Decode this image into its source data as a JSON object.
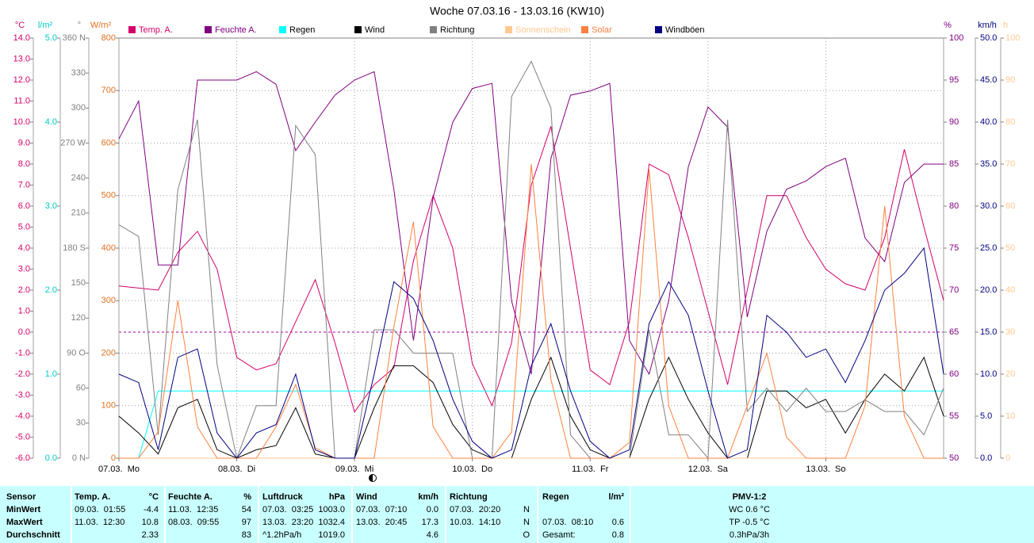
{
  "chart_data": {
    "type": "line",
    "title": "Woche 07.03.16 - 13.03.16 (KW10)",
    "xlim": [
      0,
      168
    ],
    "xticks": [
      {
        "value": 0,
        "label": "07.03.  Mo"
      },
      {
        "value": 24,
        "label": "08.03.  Di"
      },
      {
        "value": 48,
        "label": "09.03.  Mi"
      },
      {
        "value": 72,
        "label": "10.03.  Do"
      },
      {
        "value": 96,
        "label": "11.03.  Fr"
      },
      {
        "value": 120,
        "label": "12.03.  Sa"
      },
      {
        "value": 144,
        "label": "13.03.  So"
      }
    ],
    "x": [
      0,
      4,
      8,
      12,
      16,
      20,
      24,
      28,
      32,
      36,
      40,
      44,
      48,
      52,
      56,
      60,
      64,
      68,
      72,
      76,
      80,
      84,
      88,
      92,
      96,
      100,
      104,
      108,
      112,
      116,
      120,
      124,
      128,
      132,
      136,
      140,
      144,
      148,
      152,
      156,
      160,
      164,
      168
    ],
    "axes": {
      "temp": {
        "label": "°C",
        "color": "#d4006a",
        "lim": [
          -6,
          14
        ],
        "zero_line": true,
        "ticks": [
          {
            "value": -6,
            "label": "-6.0"
          },
          {
            "value": -5,
            "label": "-5.0"
          },
          {
            "value": -4,
            "label": "-4.0"
          },
          {
            "value": -3,
            "label": "-3.0"
          },
          {
            "value": -2,
            "label": "-2.0"
          },
          {
            "value": -1,
            "label": "-1.0"
          },
          {
            "value": 0,
            "label": "0.0"
          },
          {
            "value": 1,
            "label": "1.0"
          },
          {
            "value": 2,
            "label": "2.0"
          },
          {
            "value": 3,
            "label": "3.0"
          },
          {
            "value": 4,
            "label": "4.0"
          },
          {
            "value": 5,
            "label": "5.0"
          },
          {
            "value": 6,
            "label": "6.0"
          },
          {
            "value": 7,
            "label": "7.0"
          },
          {
            "value": 8,
            "label": "8.0"
          },
          {
            "value": 9,
            "label": "9.0"
          },
          {
            "value": 10,
            "label": "10.0"
          },
          {
            "value": 11,
            "label": "11.0"
          },
          {
            "value": 12,
            "label": "12.0"
          },
          {
            "value": 13,
            "label": "13.0"
          },
          {
            "value": 14,
            "label": "14.0"
          }
        ]
      },
      "rain": {
        "label": "l/m²",
        "color": "#00c8c8",
        "lim": [
          0,
          5
        ],
        "ticks": [
          {
            "value": 0,
            "label": "0.0"
          },
          {
            "value": 1,
            "label": "1.0"
          },
          {
            "value": 2,
            "label": "2.0"
          },
          {
            "value": 3,
            "label": "3.0"
          },
          {
            "value": 4,
            "label": "4.0"
          },
          {
            "value": 5,
            "label": "5.0"
          }
        ]
      },
      "dir": {
        "label": "°",
        "color": "#808080",
        "lim": [
          0,
          360
        ],
        "ticks": [
          {
            "value": 0,
            "label": "0 N"
          },
          30,
          60,
          {
            "value": 90,
            "label": "90 O"
          },
          120,
          150,
          {
            "value": 180,
            "label": "180 S"
          },
          210,
          240,
          {
            "value": 270,
            "label": "270 W"
          },
          300,
          330,
          {
            "value": 360,
            "label": "360 N"
          }
        ]
      },
      "solar": {
        "label": "W/m²",
        "color": "#e07020",
        "lim": [
          0,
          800
        ],
        "grid": true,
        "ticks": [
          0,
          100,
          200,
          300,
          400,
          500,
          600,
          700,
          800
        ]
      },
      "hum": {
        "label": "%",
        "color": "#800080",
        "lim": [
          50,
          100
        ],
        "ticks": [
          50,
          55,
          60,
          65,
          70,
          75,
          80,
          85,
          90,
          95,
          100
        ]
      },
      "wind": {
        "label": "km/h",
        "color": "#000080",
        "lim": [
          0,
          50
        ],
        "ticks": [
          {
            "value": 0,
            "label": "0.0"
          },
          {
            "value": 5,
            "label": "5.0"
          },
          {
            "value": 10,
            "label": "10.0"
          },
          {
            "value": 15,
            "label": "15.0"
          },
          {
            "value": 20,
            "label": "20.0"
          },
          {
            "value": 25,
            "label": "25.0"
          },
          {
            "value": 30,
            "label": "30.0"
          },
          {
            "value": 35,
            "label": "35.0"
          },
          {
            "value": 40,
            "label": "40.0"
          },
          {
            "value": 45,
            "label": "45.0"
          },
          {
            "value": 50,
            "label": "50.0"
          }
        ]
      },
      "sun": {
        "label": "h",
        "color": "#ffc890",
        "lim": [
          0,
          100
        ],
        "ticks": [
          0,
          10,
          20,
          30,
          40,
          50,
          60,
          70,
          80,
          90,
          100
        ]
      }
    },
    "series": [
      {
        "name": "Temp. A.",
        "color": "#d4006a",
        "axis": "temp",
        "values": [
          2.2,
          2.1,
          2.0,
          3.8,
          4.8,
          3.0,
          -1.2,
          -1.8,
          -1.5,
          0.5,
          2.5,
          -0.5,
          -3.8,
          -2.5,
          -1.7,
          3.4,
          6.5,
          4.0,
          -1.5,
          -3.5,
          -0.5,
          7.0,
          9.8,
          4.0,
          -1.8,
          -2.5,
          0.5,
          8.0,
          7.5,
          4.5,
          1.0,
          -2.5,
          2.0,
          6.5,
          6.5,
          4.5,
          3.0,
          2.3,
          2.0,
          4.5,
          8.7,
          5.0,
          1.5
        ]
      },
      {
        "name": "Feuchte A.",
        "color": "#800080",
        "axis": "hum",
        "values": [
          88,
          92.5,
          73,
          73,
          95,
          95,
          95,
          96,
          94.5,
          86.6,
          90,
          93.2,
          95,
          96,
          82,
          64,
          81,
          90,
          94,
          94.6,
          68.7,
          60,
          85.7,
          93.2,
          93.7,
          94.6,
          64,
          60,
          68.7,
          84.7,
          91.8,
          89.4,
          66.8,
          77,
          82,
          83,
          84.7,
          85.7,
          76.2,
          73.4,
          82.8,
          85,
          85
        ]
      },
      {
        "name": "Regen",
        "color": "#00ffff",
        "axis": "rain",
        "values": [
          0,
          0,
          0.8,
          0.8,
          0.8,
          0.8,
          0.8,
          0.8,
          0.8,
          0.8,
          0.8,
          0.8,
          0.8,
          0.8,
          0.8,
          0.8,
          0.8,
          0.8,
          0.8,
          0.8,
          0.8,
          0.8,
          0.8,
          0.8,
          0.8,
          0.8,
          0.8,
          0.8,
          0.8,
          0.8,
          0.8,
          0.8,
          0.8,
          0.8,
          0.8,
          0.8,
          0.8,
          0.8,
          0.8,
          0.8,
          0.8,
          0.8,
          0.8
        ]
      },
      {
        "name": "Wind",
        "color": "#000000",
        "axis": "wind",
        "values": [
          5,
          3,
          0.5,
          6,
          7,
          1,
          0,
          1,
          1.5,
          6,
          0.5,
          0,
          0,
          6,
          11,
          11,
          9,
          4,
          1,
          0,
          0,
          7,
          12,
          5,
          1,
          0,
          0,
          7,
          12,
          7,
          3,
          0,
          0,
          8,
          8,
          6,
          7,
          3,
          7,
          10,
          8,
          12,
          5
        ]
      },
      {
        "name": "Richtung",
        "color": "#808080",
        "axis": "dir",
        "values": [
          200,
          190,
          20,
          230,
          290,
          80,
          0,
          45,
          45,
          285,
          260,
          0,
          0,
          110,
          110,
          90,
          90,
          90,
          0,
          0,
          310,
          340,
          300,
          20,
          0,
          0,
          0,
          110,
          20,
          20,
          0,
          290,
          40,
          60,
          40,
          60,
          40,
          40,
          50,
          40,
          40,
          20,
          60
        ]
      },
      {
        "name": "Sonnenschein",
        "color": "#ffc890",
        "axis": "sun",
        "values": [
          0,
          0,
          0,
          0,
          0,
          0,
          0,
          0,
          0,
          0,
          0,
          0,
          0,
          0,
          0,
          0,
          0,
          0,
          0,
          0,
          0,
          0,
          0,
          0,
          0,
          0,
          0,
          0,
          0,
          0,
          0,
          0,
          0,
          0,
          0,
          0,
          0,
          0,
          0,
          0,
          0,
          0,
          0
        ]
      },
      {
        "name": "Solar",
        "color": "#ff8040",
        "axis": "solar",
        "values": [
          0,
          0,
          50,
          300,
          60,
          0,
          0,
          0,
          60,
          140,
          20,
          0,
          0,
          0,
          250,
          450,
          60,
          0,
          0,
          0,
          50,
          560,
          150,
          0,
          0,
          0,
          30,
          550,
          100,
          0,
          0,
          0,
          100,
          200,
          40,
          0,
          0,
          0,
          100,
          480,
          80,
          0,
          0
        ]
      },
      {
        "name": "Windböen",
        "color": "#000080",
        "axis": "wind",
        "values": [
          10,
          9,
          1,
          12,
          13,
          3,
          0,
          3,
          4,
          10,
          1,
          0,
          0,
          10,
          21,
          19,
          14,
          7,
          2,
          0,
          1,
          11,
          16,
          8,
          2,
          0,
          1,
          16,
          21,
          17,
          8,
          0,
          1,
          17,
          15,
          12,
          13,
          9,
          14,
          20,
          22,
          25,
          10
        ]
      }
    ]
  },
  "table": {
    "header": {
      "label": "Sensor",
      "temp_time": "Temp. A.",
      "temp": "°C",
      "hum_time": "Feuchte A.",
      "hum": "%",
      "press_time": "Luftdruck",
      "press": "hPa",
      "wind_time": "Wind",
      "wind": "km/h",
      "dir_time": "Richtung",
      "rain_time": "Regen",
      "rain": "l/m²",
      "pmv": "PMV-1:2"
    },
    "rows": [
      {
        "label": "MinWert",
        "temp_time": "09.03.  01:55",
        "temp": "-4.4",
        "hum_time": "11.03.  12:35",
        "hum": "54",
        "press_time": "07.03.  03:25",
        "press": "1003.0",
        "wind_time": "07.03.  07:10",
        "wind": "0.0",
        "dir_time": "07.03.  20:20",
        "dir": "N",
        "pmv": "WC 0.6 °C"
      },
      {
        "label": "MaxWert",
        "temp_time": "11.03.  12:30",
        "temp": "10.8",
        "hum_time": "08.03.  09:55",
        "hum": "97",
        "press_time": "13.03.  23:20",
        "press": "1032.4",
        "wind_time": "13.03.  20:45",
        "wind": "17.3",
        "dir_time": "10.03.  14:10",
        "dir": "N",
        "rain_time": "07.03.  08:10",
        "rain": "0.6",
        "pmv": "TP -0.5 °C"
      },
      {
        "label": "Durchschnitt",
        "temp": "2.33",
        "hum": "83",
        "press_time": "^1.2hPa/h",
        "press": "1019.0",
        "wind": "4.6",
        "dir": "O",
        "rain_time": "Gesamt:",
        "rain": "0.8",
        "pmv": "0.3hPa/3h"
      }
    ]
  }
}
